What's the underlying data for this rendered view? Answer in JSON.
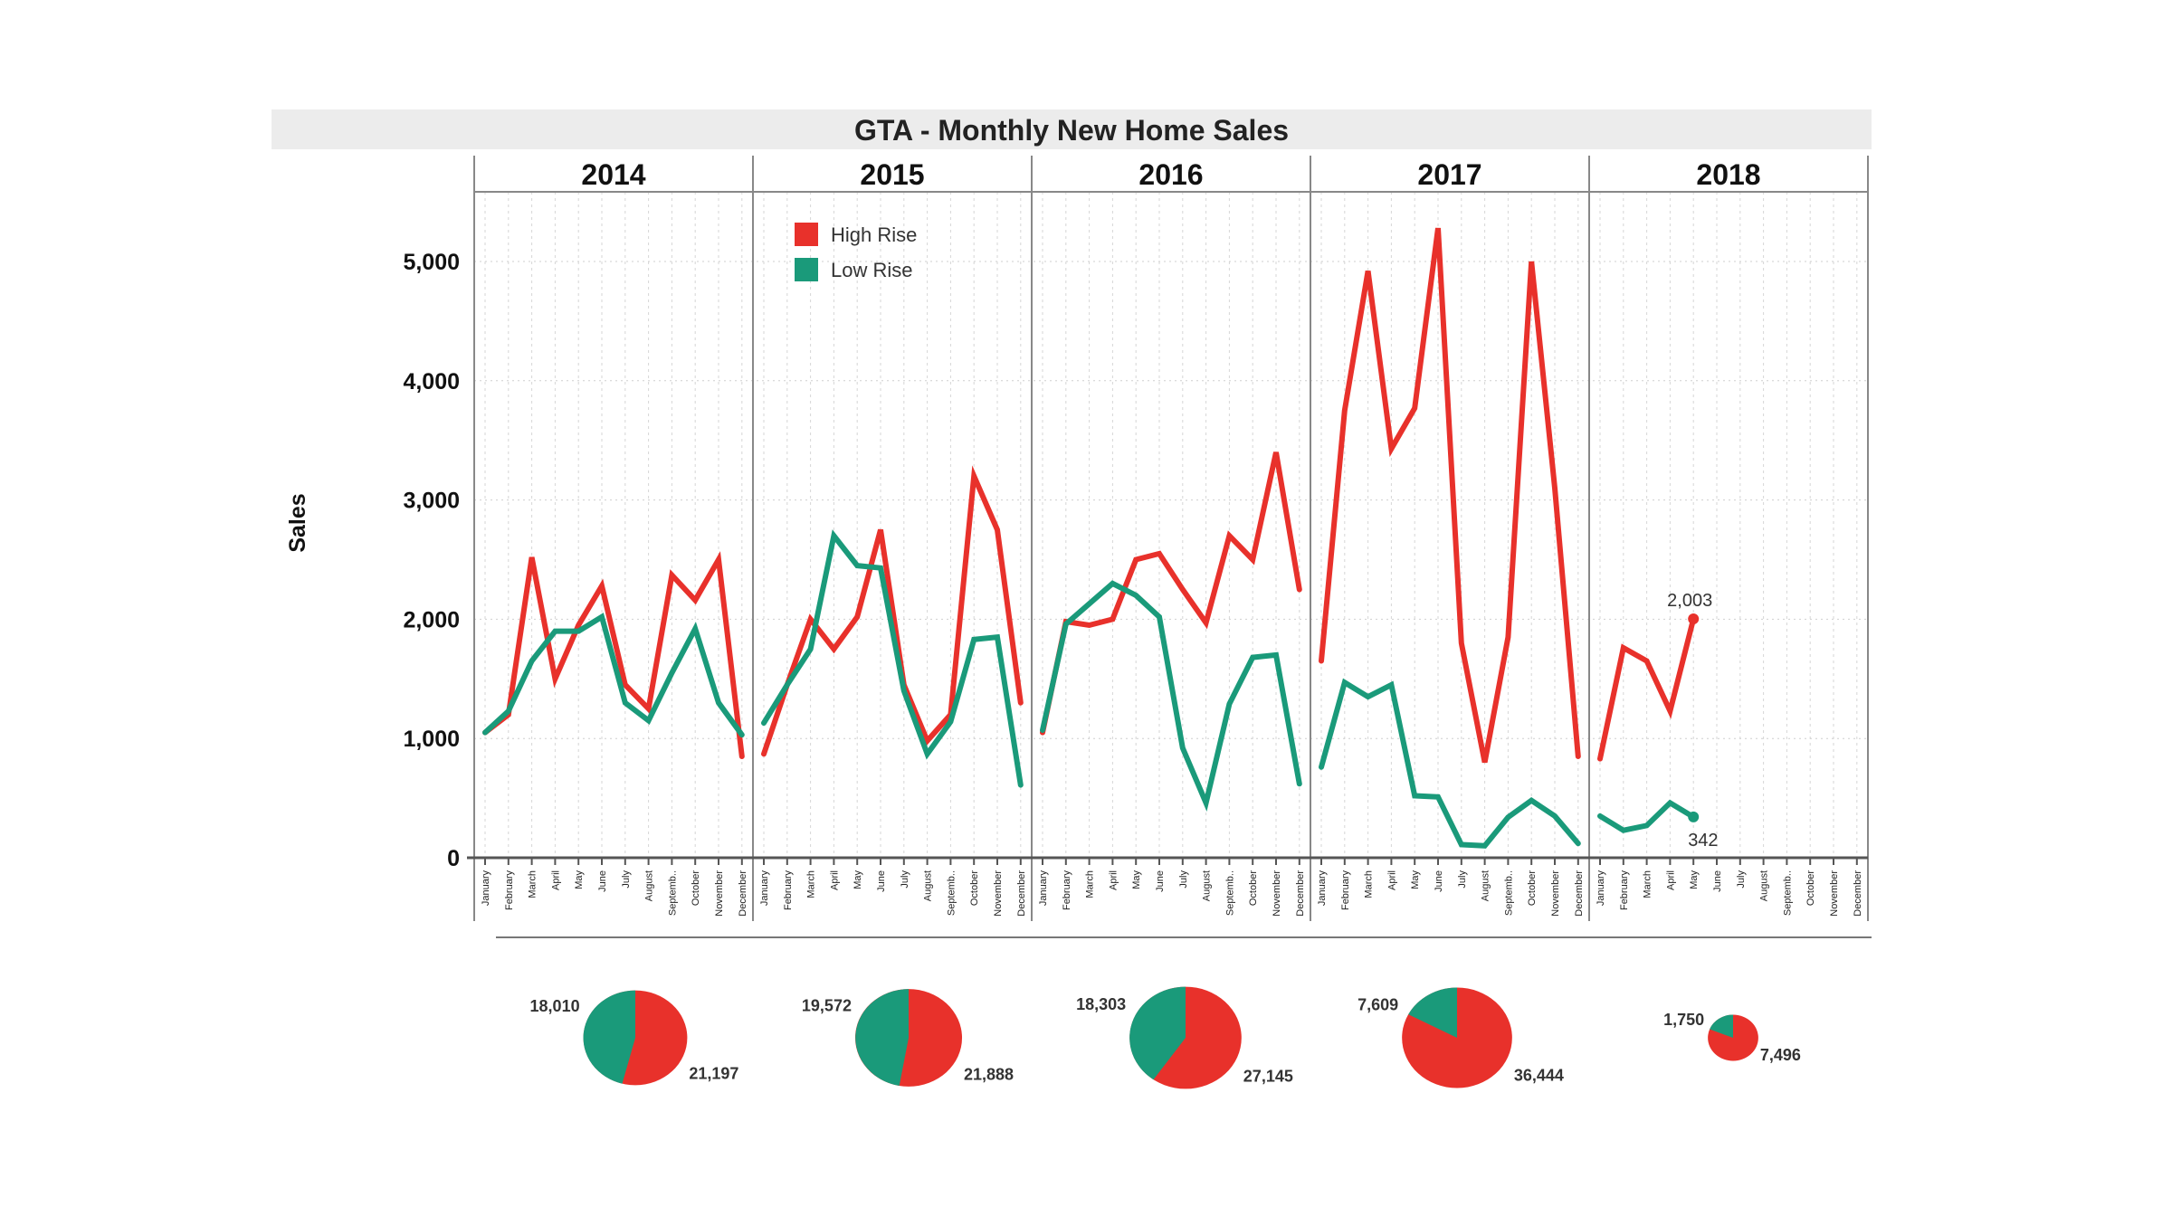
{
  "chart_data": {
    "type": "line",
    "title": "GTA - Monthly New Home Sales",
    "ylabel": "Sales",
    "xlabel": "",
    "ylim": [
      0,
      5500
    ],
    "yticks": [
      0,
      1000,
      2000,
      3000,
      4000,
      5000
    ],
    "ytick_labels": [
      "0",
      "1,000",
      "2,000",
      "3,000",
      "4,000",
      "5,000"
    ],
    "months": [
      "January",
      "February",
      "March",
      "April",
      "May",
      "June",
      "July",
      "August",
      "Septemb..",
      "October",
      "November",
      "December"
    ],
    "years": [
      "2014",
      "2015",
      "2016",
      "2017",
      "2018"
    ],
    "series": [
      {
        "name": "High Rise",
        "color": "#e8312b",
        "values": [
          [
            1050,
            1200,
            2520,
            1500,
            1950,
            2280,
            1450,
            1250,
            2370,
            2160,
            2500,
            850
          ],
          [
            870,
            1450,
            2000,
            1750,
            2020,
            2750,
            1450,
            980,
            1200,
            3200,
            2750,
            1300
          ],
          [
            1050,
            1980,
            1950,
            2000,
            2500,
            2550,
            2250,
            1970,
            2700,
            2500,
            3400,
            2250
          ],
          [
            1650,
            3750,
            4920,
            3430,
            3770,
            5280,
            1800,
            800,
            1850,
            5000,
            3100,
            850
          ],
          [
            830,
            1760,
            1650,
            1230,
            2003,
            null,
            null,
            null,
            null,
            null,
            null,
            null
          ]
        ]
      },
      {
        "name": "Low Rise",
        "color": "#1a9a7a",
        "values": [
          [
            1050,
            1230,
            1650,
            1900,
            1900,
            2020,
            1300,
            1150,
            1550,
            1920,
            1300,
            1030
          ],
          [
            1130,
            1450,
            1750,
            2700,
            2450,
            2430,
            1400,
            870,
            1140,
            1830,
            1850,
            610
          ],
          [
            1070,
            1960,
            2130,
            2300,
            2200,
            2020,
            920,
            460,
            1290,
            1680,
            1700,
            620
          ],
          [
            760,
            1470,
            1350,
            1450,
            520,
            510,
            110,
            100,
            340,
            480,
            350,
            120
          ],
          [
            350,
            230,
            270,
            460,
            342,
            null,
            null,
            null,
            null,
            null,
            null,
            null
          ]
        ]
      }
    ],
    "annotations": [
      {
        "label": "2,003",
        "series": "High Rise",
        "year": "2018",
        "month": "May",
        "value": 2003
      },
      {
        "label": "342",
        "series": "Low Rise",
        "year": "2018",
        "month": "May",
        "value": 342
      }
    ],
    "pies": [
      {
        "year": "2014",
        "low": 18010,
        "high": 21197,
        "low_label": "18,010",
        "high_label": "21,197"
      },
      {
        "year": "2015",
        "low": 19572,
        "high": 21888,
        "low_label": "19,572",
        "high_label": "21,888"
      },
      {
        "year": "2016",
        "low": 18303,
        "high": 27145,
        "low_label": "18,303",
        "high_label": "27,145"
      },
      {
        "year": "2017",
        "low": 7609,
        "high": 36444,
        "low_label": "7,609",
        "high_label": "36,444"
      },
      {
        "year": "2018",
        "low": 1750,
        "high": 7496,
        "low_label": "1,750",
        "high_label": "7,496"
      }
    ],
    "legend": {
      "position": "top-left of plot",
      "items": [
        "High Rise",
        "Low Rise"
      ]
    },
    "grid": true
  }
}
